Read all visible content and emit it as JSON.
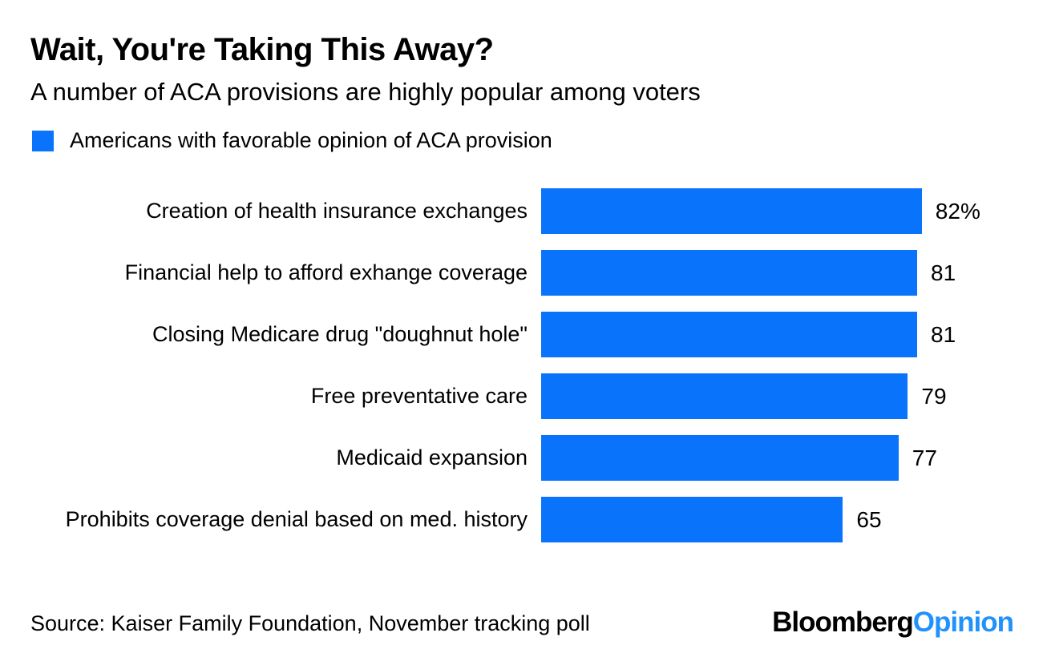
{
  "page": {
    "background": "#ffffff"
  },
  "header": {
    "title": "Wait, You're Taking This Away?",
    "subtitle": "A number of ACA provisions are highly popular among voters"
  },
  "legend": {
    "label": "Americans with favorable opinion of ACA provision"
  },
  "chart_data": {
    "type": "bar",
    "orientation": "horizontal",
    "title": "Wait, You're Taking This Away?",
    "subtitle": "A number of ACA provisions are highly popular among voters",
    "legend_entries": [
      "Americans with favorable opinion of ACA provision"
    ],
    "categories": [
      "Creation of health insurance exchanges",
      "Financial help to afford exhange coverage",
      "Closing Medicare drug \"doughnut hole\"",
      "Free preventative care",
      "Medicaid expansion",
      "Prohibits coverage denial based on med. history"
    ],
    "values": [
      82,
      81,
      81,
      79,
      77,
      65
    ],
    "value_labels": [
      "82%",
      "81",
      "81",
      "79",
      "77",
      "65"
    ],
    "unit": "percent",
    "xlim": [
      0,
      100
    ],
    "axis_hidden": true,
    "grid": false,
    "bar_color": "#0a73fb",
    "value_label_position": "right-of-bar",
    "legend_position": "top-left"
  },
  "footer": {
    "source": "Source: Kaiser Family Foundation, November tracking poll",
    "brand": {
      "black_text": "Bloomberg",
      "blue_text": "Opinion",
      "black_color": "#000000",
      "blue_color": "#2191fb"
    }
  }
}
